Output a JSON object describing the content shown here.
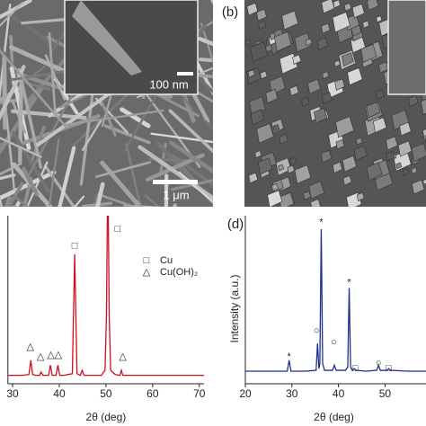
{
  "panels": {
    "a": {
      "inset_scale": "100 nm",
      "scale": "1 μm"
    },
    "b": {
      "label": "(b)"
    }
  },
  "chart_data": [
    {
      "type": "line",
      "xlabel": "2θ (deg)",
      "x": [
        29,
        30,
        32,
        33.5,
        33.9,
        34.3,
        35,
        35.8,
        36.1,
        36.5,
        37.7,
        38.1,
        38.5,
        39.3,
        39.7,
        40.1,
        41,
        42.8,
        43.3,
        43.8,
        44.5,
        44.9,
        45.3,
        47,
        49,
        49.8,
        50.1,
        50.4,
        50.7,
        51,
        52,
        53,
        53.3,
        53.6,
        55,
        58,
        62,
        66,
        71
      ],
      "series": [
        {
          "color": "#c8101e",
          "values": [
            5,
            5,
            5,
            5.5,
            14,
            5.5,
            5,
            5,
            7,
            5,
            5,
            11,
            5,
            5,
            11,
            5,
            5,
            6,
            77,
            6,
            5,
            8,
            5,
            5,
            5,
            8,
            40,
            130,
            40,
            8,
            5.5,
            5,
            8,
            5,
            5,
            5,
            5,
            5,
            5
          ]
        }
      ],
      "xlim": [
        29,
        71
      ],
      "xticks": [
        30,
        40,
        50,
        60,
        70
      ],
      "ylim": [
        0,
        100
      ],
      "legend": [
        {
          "symbol": "□",
          "text": "Cu"
        },
        {
          "symbol": "△",
          "text": "Cu(OH)₂"
        }
      ],
      "annotations": [
        {
          "text": "□",
          "x": 43.3,
          "y": 82
        },
        {
          "text": "□",
          "x": 52.5,
          "y": 92
        },
        {
          "text": "△",
          "x": 33.8,
          "y": 22
        },
        {
          "text": "△",
          "x": 36,
          "y": 16
        },
        {
          "text": "△",
          "x": 38.2,
          "y": 17
        },
        {
          "text": "△",
          "x": 39.8,
          "y": 17
        },
        {
          "text": "△",
          "x": 53.6,
          "y": 16
        }
      ]
    },
    {
      "type": "line",
      "label": "(d)",
      "xlabel": "2θ (deg)",
      "ylabel": "Intensity (a.u.)",
      "x": [
        20,
        25,
        29,
        29.4,
        29.8,
        33,
        35.2,
        35.5,
        35.8,
        36.0,
        36.3,
        36.6,
        37,
        38.7,
        39.1,
        39.5,
        41.5,
        42,
        42.3,
        42.6,
        43,
        43.4,
        43.8,
        46,
        48.2,
        48.6,
        49,
        50.4,
        50.8,
        51.2,
        55,
        58.8
      ],
      "series": [
        {
          "color": "#1f2f8f",
          "values": [
            7.5,
            7.5,
            7.5,
            14,
            7.5,
            7.5,
            8,
            24,
            9,
            12,
            92,
            12,
            8,
            8,
            11,
            8,
            8,
            10,
            57,
            10,
            8,
            9,
            8,
            7.5,
            8,
            11,
            8,
            8,
            9,
            8,
            7.5,
            7.5
          ]
        }
      ],
      "xlim": [
        20,
        58.8
      ],
      "xticks": [
        20,
        30,
        40,
        50
      ],
      "ylim": [
        0,
        100
      ],
      "annotations": [
        {
          "text": "*",
          "x": 29.4,
          "y": 16
        },
        {
          "text": "*",
          "x": 36.3,
          "y": 96
        },
        {
          "text": "*",
          "x": 42.3,
          "y": 60
        },
        {
          "text": "○",
          "x": 35.3,
          "y": 31.5
        },
        {
          "text": "○",
          "x": 39,
          "y": 24.6
        },
        {
          "text": "○",
          "x": 48.6,
          "y": 12.3
        },
        {
          "text": "□",
          "x": 43.6,
          "y": 9
        },
        {
          "text": "□",
          "x": 50.8,
          "y": 9
        }
      ]
    }
  ]
}
